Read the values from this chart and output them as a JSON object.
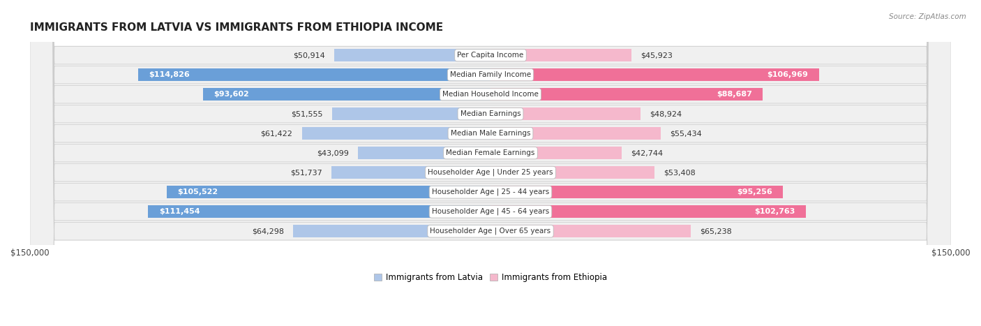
{
  "title": "IMMIGRANTS FROM LATVIA VS IMMIGRANTS FROM ETHIOPIA INCOME",
  "source": "Source: ZipAtlas.com",
  "categories": [
    "Per Capita Income",
    "Median Family Income",
    "Median Household Income",
    "Median Earnings",
    "Median Male Earnings",
    "Median Female Earnings",
    "Householder Age | Under 25 years",
    "Householder Age | 25 - 44 years",
    "Householder Age | 45 - 64 years",
    "Householder Age | Over 65 years"
  ],
  "latvia_values": [
    50914,
    114826,
    93602,
    51555,
    61422,
    43099,
    51737,
    105522,
    111454,
    64298
  ],
  "ethiopia_values": [
    45923,
    106969,
    88687,
    48924,
    55434,
    42744,
    53408,
    95256,
    102763,
    65238
  ],
  "latvia_color_light": "#aec6e8",
  "latvia_color_dark": "#6a9fd8",
  "ethiopia_color_light": "#f5b8cc",
  "ethiopia_color_dark": "#f07098",
  "row_bg_color": "#f0f0f0",
  "row_border_color": "#cccccc",
  "max_value": 150000,
  "legend_latvia": "Immigrants from Latvia",
  "legend_ethiopia": "Immigrants from Ethiopia",
  "bar_height": 0.62,
  "label_thresh": 70000
}
